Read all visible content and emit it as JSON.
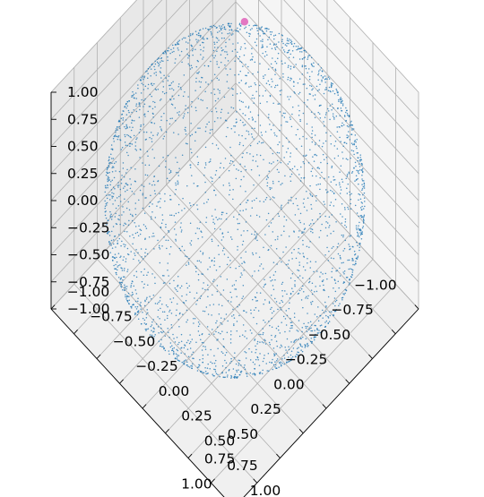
{
  "chart_data": {
    "type": "scatter",
    "projection": "3d",
    "view": "isometric, looking down at the z = -1 floor",
    "series": [
      {
        "description_of_points": "points on the surface of the unit sphere",
        "n_points": 3000,
        "radius": 1,
        "color": "#1f77b4",
        "marker_size": "small"
      }
    ],
    "highlight_points": [
      {
        "x": -0.65,
        "y": -0.55,
        "z": 0.55,
        "color": "#e377c2"
      }
    ],
    "x_axis": {
      "range": [
        -1,
        1
      ],
      "ticks": [
        -1.0,
        -0.75,
        -0.5,
        -0.25,
        0.0,
        0.25,
        0.5,
        0.75,
        1.0
      ],
      "tick_labels": [
        "−1.00",
        "−0.75",
        "−0.50",
        "−0.25",
        "0.00",
        "0.25",
        "0.50",
        "0.75",
        "1.00"
      ]
    },
    "y_axis": {
      "range": [
        -1,
        1
      ],
      "ticks": [
        -1.0,
        -0.75,
        -0.5,
        -0.25,
        0.0,
        0.25,
        0.5,
        0.75,
        1.0
      ],
      "tick_labels": [
        "−1.00",
        "−0.75",
        "−0.50",
        "−0.25",
        "0.00",
        "0.25",
        "0.50",
        "0.75",
        "1.00"
      ]
    },
    "z_axis": {
      "range": [
        -1,
        1
      ],
      "ticks": [
        -1.0,
        -0.75,
        -0.5,
        -0.25,
        0.0,
        0.25,
        0.5,
        0.75,
        1.0
      ],
      "tick_labels": [
        "−1.00",
        "−0.75",
        "−0.50",
        "−0.25",
        "0.00",
        "0.25",
        "0.50",
        "0.75",
        "1.00"
      ]
    },
    "grid": true,
    "legend": "none",
    "colors": {
      "points": "#1f77b4",
      "highlight": "#e377c2",
      "pane_light": "#f5f5f5",
      "pane_mid": "#f0f0f0",
      "pane_dark": "#e8e8e8",
      "grid": "#b0b0b0"
    }
  }
}
